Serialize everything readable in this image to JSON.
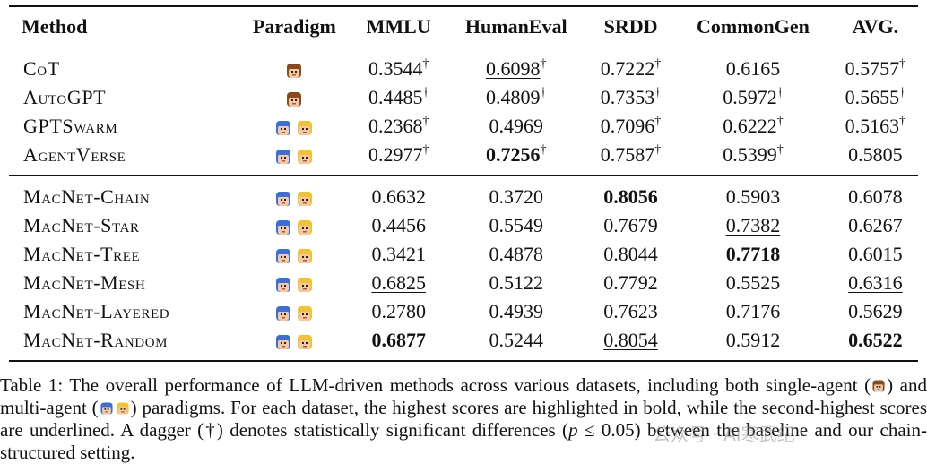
{
  "table": {
    "headers": [
      "Method",
      "Paradigm",
      "MMLU",
      "HumanEval",
      "SRDD",
      "CommonGen",
      "AVG."
    ],
    "baselines": [
      {
        "method": "CoT",
        "paradigm": "single",
        "cells": [
          {
            "v": "0.3544",
            "dag": "†",
            "style": ""
          },
          {
            "v": "0.6098",
            "dag": "†",
            "style": "under"
          },
          {
            "v": "0.7222",
            "dag": "†",
            "style": ""
          },
          {
            "v": "0.6165",
            "dag": "",
            "style": ""
          },
          {
            "v": "0.5757",
            "dag": "†",
            "style": ""
          }
        ]
      },
      {
        "method": "AutoGPT",
        "paradigm": "single",
        "cells": [
          {
            "v": "0.4485",
            "dag": "†",
            "style": ""
          },
          {
            "v": "0.4809",
            "dag": "†",
            "style": ""
          },
          {
            "v": "0.7353",
            "dag": "†",
            "style": ""
          },
          {
            "v": "0.5972",
            "dag": "†",
            "style": ""
          },
          {
            "v": "0.5655",
            "dag": "†",
            "style": ""
          }
        ]
      },
      {
        "method": "GPTSwarm",
        "paradigm": "multi",
        "cells": [
          {
            "v": "0.2368",
            "dag": "†",
            "style": ""
          },
          {
            "v": "0.4969",
            "dag": "",
            "style": ""
          },
          {
            "v": "0.7096",
            "dag": "†",
            "style": ""
          },
          {
            "v": "0.6222",
            "dag": "†",
            "style": ""
          },
          {
            "v": "0.5163",
            "dag": "†",
            "style": ""
          }
        ]
      },
      {
        "method": "AgentVerse",
        "paradigm": "multi",
        "cells": [
          {
            "v": "0.2977",
            "dag": "†",
            "style": ""
          },
          {
            "v": "0.7256",
            "dag": "†",
            "style": "bold"
          },
          {
            "v": "0.7587",
            "dag": "†",
            "style": ""
          },
          {
            "v": "0.5399",
            "dag": "†",
            "style": ""
          },
          {
            "v": "0.5805",
            "dag": "",
            "style": ""
          }
        ]
      }
    ],
    "macnet": [
      {
        "method": "MacNet-Chain",
        "paradigm": "multi",
        "cells": [
          {
            "v": "0.6632",
            "dag": "",
            "style": ""
          },
          {
            "v": "0.3720",
            "dag": "",
            "style": ""
          },
          {
            "v": "0.8056",
            "dag": "",
            "style": "bold"
          },
          {
            "v": "0.5903",
            "dag": "",
            "style": ""
          },
          {
            "v": "0.6078",
            "dag": "",
            "style": ""
          }
        ]
      },
      {
        "method": "MacNet-Star",
        "paradigm": "multi",
        "cells": [
          {
            "v": "0.4456",
            "dag": "",
            "style": ""
          },
          {
            "v": "0.5549",
            "dag": "",
            "style": ""
          },
          {
            "v": "0.7679",
            "dag": "",
            "style": ""
          },
          {
            "v": "0.7382",
            "dag": "",
            "style": "under"
          },
          {
            "v": "0.6267",
            "dag": "",
            "style": ""
          }
        ]
      },
      {
        "method": "MacNet-Tree",
        "paradigm": "multi",
        "cells": [
          {
            "v": "0.3421",
            "dag": "",
            "style": ""
          },
          {
            "v": "0.4878",
            "dag": "",
            "style": ""
          },
          {
            "v": "0.8044",
            "dag": "",
            "style": ""
          },
          {
            "v": "0.7718",
            "dag": "",
            "style": "bold"
          },
          {
            "v": "0.6015",
            "dag": "",
            "style": ""
          }
        ]
      },
      {
        "method": "MacNet-Mesh",
        "paradigm": "multi",
        "cells": [
          {
            "v": "0.6825",
            "dag": "",
            "style": "under"
          },
          {
            "v": "0.5122",
            "dag": "",
            "style": ""
          },
          {
            "v": "0.7792",
            "dag": "",
            "style": ""
          },
          {
            "v": "0.5525",
            "dag": "",
            "style": ""
          },
          {
            "v": "0.6316",
            "dag": "",
            "style": "under"
          }
        ]
      },
      {
        "method": "MacNet-Layered",
        "paradigm": "multi",
        "cells": [
          {
            "v": "0.2780",
            "dag": "",
            "style": ""
          },
          {
            "v": "0.4939",
            "dag": "",
            "style": ""
          },
          {
            "v": "0.7623",
            "dag": "",
            "style": ""
          },
          {
            "v": "0.7176",
            "dag": "",
            "style": ""
          },
          {
            "v": "0.5629",
            "dag": "",
            "style": ""
          }
        ]
      },
      {
        "method": "MacNet-Random",
        "paradigm": "multi",
        "cells": [
          {
            "v": "0.6877",
            "dag": "",
            "style": "bold"
          },
          {
            "v": "0.5244",
            "dag": "",
            "style": ""
          },
          {
            "v": "0.8054",
            "dag": "",
            "style": "under"
          },
          {
            "v": "0.5912",
            "dag": "",
            "style": ""
          },
          {
            "v": "0.6522",
            "dag": "",
            "style": "bold"
          }
        ]
      }
    ]
  },
  "caption": {
    "part1": "Table 1: The overall performance of LLM-driven methods across various datasets, including both single-agent (",
    "part2": ") and multi-agent (",
    "part3": ") paradigms. For each dataset, the highest scores are highlighted in bold, while the second-highest scores are underlined. A dagger (†) denotes statistically significant differences (",
    "p_symbol": "p",
    "part4": " ≤ 0.05) between the baseline and our chain-structured setting."
  },
  "watermark": "公众号 · AI寒武纪",
  "colors": {
    "text": "#111111",
    "avatar_hair_brown": "#8a4a1c",
    "avatar_hair_blue": "#3a6fd8",
    "avatar_hair_yellow": "#f2c230",
    "avatar_skin": "#f4c8a0"
  }
}
